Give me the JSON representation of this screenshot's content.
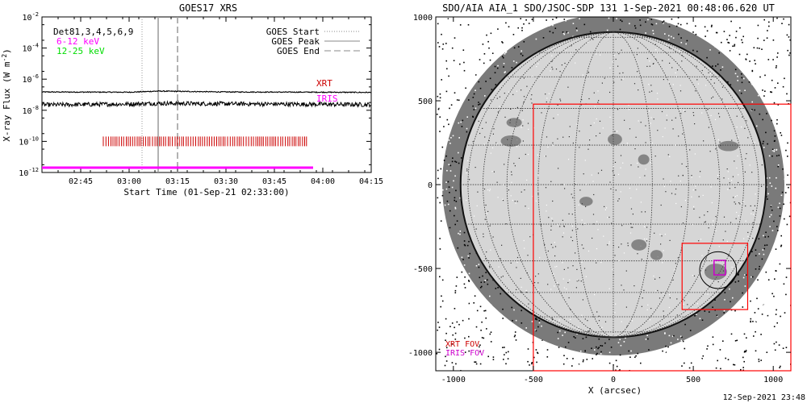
{
  "left_panel": {
    "title": "GOES17 XRS",
    "ylabel": "X-ray Flux (W m",
    "ylabel_sup": "-2",
    "ylabel_close": ")",
    "xlabel": "Start Time (01-Sep-21 02:33:00)",
    "info_text": "Det81,3,4,5,6,9",
    "energy_bands": [
      {
        "label": "6-12 keV",
        "color": "#ff00ff"
      },
      {
        "label": "12-25 keV",
        "color": "#00dd00"
      }
    ],
    "legend": [
      {
        "label": "GOES Start",
        "style": "dotted"
      },
      {
        "label": "GOES Peak",
        "style": "solid"
      },
      {
        "label": "GOES End",
        "style": "dashed"
      }
    ],
    "xrt_label": "XRT",
    "iris_label": "IRIS"
  },
  "right_panel": {
    "title": "SDO/AIA AIA_1 SDO/JSOC-SDP 131  1-Sep-2021 00:48:06.620 UT",
    "xlabel": "X (arcsec)",
    "xrt_fov_label": "XRT FOV",
    "iris_fov_label": "IRIS FOV",
    "footer_timestamp": "12-Sep-2021 23:48"
  },
  "chart_data": [
    {
      "type": "line",
      "title": "GOES17 XRS",
      "xlabel": "Start Time (01-Sep-21 02:33:00)",
      "ylabel": "X-ray Flux (W m-2)",
      "y_scale": "log",
      "ylim": [
        1e-12,
        0.01
      ],
      "xlim": [
        "02:33",
        "04:15"
      ],
      "x_ticks": [
        "02:45",
        "03:00",
        "03:15",
        "03:30",
        "03:45",
        "04:00",
        "04:15"
      ],
      "y_ticks": [
        "10^-12",
        "10^-10",
        "10^-8",
        "10^-6",
        "10^-4",
        "10^-2"
      ],
      "goes_events": {
        "start": "03:04",
        "peak": "03:09",
        "end": "03:15"
      },
      "series": [
        {
          "name": "XRT",
          "color": "#000000",
          "x": [
            "02:33",
            "03:00",
            "03:09",
            "03:30",
            "04:00",
            "04:15"
          ],
          "values": [
            1.5e-07,
            1.45e-07,
            1.7e-07,
            1.5e-07,
            1.45e-07,
            1.4e-07
          ]
        },
        {
          "name": "IRIS",
          "color": "#000000",
          "x": [
            "02:33",
            "03:00",
            "03:09",
            "03:30",
            "04:00",
            "04:15"
          ],
          "values": [
            2.2e-08,
            2.5e-08,
            2.8e-08,
            2.6e-08,
            2.4e-08,
            2.3e-08
          ]
        }
      ],
      "xrt_observations": {
        "color": "#cc0000",
        "level": 1e-10,
        "start": "02:52",
        "end": "03:55"
      },
      "iris_observations": {
        "color": "#ff00ff",
        "level": 1e-12,
        "start": "02:33",
        "end": "03:57"
      }
    },
    {
      "type": "image",
      "title": "SDO/AIA AIA_1 SDO/JSOC-SDP 131  1-Sep-2021 00:48:06.620 UT",
      "xlabel": "X (arcsec)",
      "xlim": [
        -1110,
        1110
      ],
      "ylim": [
        -1110,
        1000
      ],
      "x_ticks": [
        -1000,
        -500,
        0,
        500,
        1000
      ],
      "y_ticks": [
        -1000,
        -500,
        0,
        500,
        1000
      ],
      "solar_radius_arcsec": 955,
      "xrt_fov": {
        "color": "#ff0000",
        "x": [
          -500,
          1110
        ],
        "y": [
          -1110,
          480
        ]
      },
      "iris_fov": {
        "color": "#ff0000",
        "x": [
          430,
          840
        ],
        "y": [
          -745,
          -350
        ]
      },
      "goes_flare_circle": {
        "center": [
          655,
          -510
        ],
        "radius": 115
      },
      "iris_marker": {
        "color": "#cc00cc",
        "center": [
          665,
          -495
        ]
      }
    }
  ]
}
